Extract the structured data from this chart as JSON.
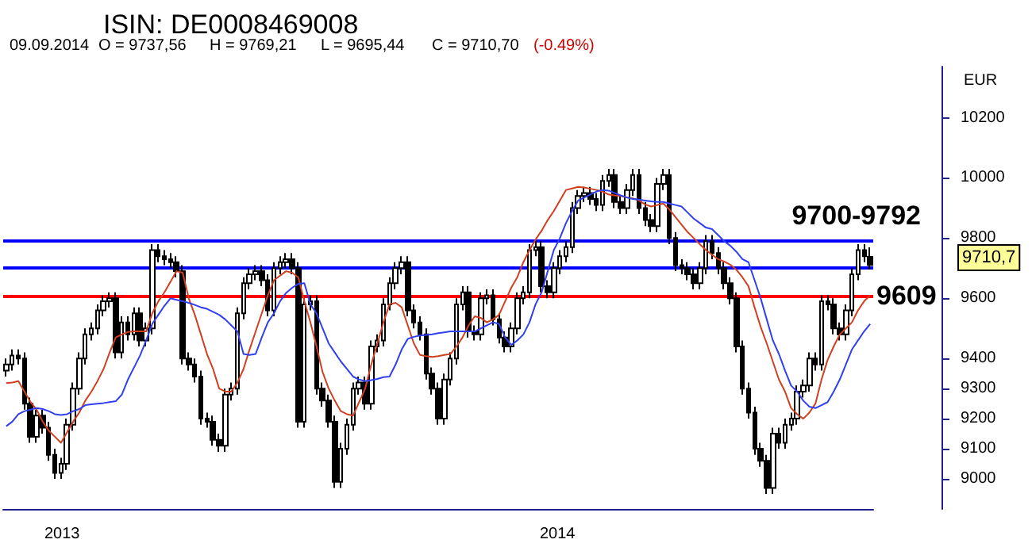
{
  "chart_data": {
    "type": "candlestick",
    "title": "ISIN: DE0008469008",
    "ylabel": "EUR",
    "tick_labels": "y",
    "line_style": "solid",
    "color": "#000000",
    "ylim": [
      8900,
      10370
    ],
    "yticks": [
      9000,
      9100,
      9200,
      9300,
      9400,
      9600,
      9800,
      10000,
      10200
    ],
    "categories": [
      null,
      null,
      null,
      null,
      null,
      null,
      null,
      null,
      null,
      null,
      null,
      null,
      null,
      null,
      null,
      null,
      null,
      null,
      null,
      null,
      null,
      null,
      null,
      null,
      null,
      null,
      null,
      null,
      null,
      null,
      null,
      null,
      null,
      null,
      null,
      null,
      null,
      null,
      null,
      null,
      null,
      null,
      null,
      null,
      null,
      null,
      null,
      null,
      null,
      null,
      null,
      null,
      null,
      null,
      null,
      null,
      null,
      null,
      null,
      null,
      null,
      null,
      null,
      null,
      null,
      null,
      null,
      null,
      null,
      null,
      null,
      null,
      null,
      null,
      null,
      null,
      null,
      null,
      null,
      null,
      null,
      null,
      null,
      null,
      null,
      null,
      null,
      null,
      null,
      null,
      null,
      null,
      null,
      null,
      null,
      null,
      null,
      null,
      null,
      null,
      null,
      null,
      null,
      null,
      null,
      null,
      null,
      null,
      null,
      null,
      null,
      null,
      null,
      null,
      null,
      null,
      null,
      null,
      null,
      null,
      null,
      null,
      null,
      null,
      null,
      null,
      null,
      null,
      null,
      null,
      null,
      null,
      null,
      null,
      null,
      null,
      null,
      null,
      null,
      null,
      null,
      null,
      null
    ],
    "ohlc": [
      [
        9360,
        9400,
        9340,
        9380
      ],
      [
        9380,
        9430,
        9360,
        9410
      ],
      [
        9410,
        9430,
        9380,
        9400
      ],
      [
        9400,
        9420,
        9230,
        9250
      ],
      [
        9250,
        9270,
        9120,
        9140
      ],
      [
        9140,
        9230,
        9120,
        9210
      ],
      [
        9210,
        9230,
        9150,
        9170
      ],
      [
        9170,
        9190,
        9060,
        9080
      ],
      [
        9080,
        9100,
        9000,
        9020
      ],
      [
        9020,
        9070,
        9000,
        9050
      ],
      [
        9050,
        9200,
        9030,
        9180
      ],
      [
        9180,
        9320,
        9160,
        9300
      ],
      [
        9300,
        9420,
        9280,
        9400
      ],
      [
        9400,
        9500,
        9380,
        9480
      ],
      [
        9480,
        9520,
        9460,
        9500
      ],
      [
        9500,
        9580,
        9480,
        9560
      ],
      [
        9560,
        9610,
        9540,
        9590
      ],
      [
        9590,
        9620,
        9570,
        9600
      ],
      [
        9600,
        9620,
        9400,
        9420
      ],
      [
        9420,
        9540,
        9400,
        9520
      ],
      [
        9520,
        9540,
        9460,
        9480
      ],
      [
        9480,
        9570,
        9460,
        9550
      ],
      [
        9550,
        9570,
        9440,
        9460
      ],
      [
        9460,
        9520,
        9440,
        9500
      ],
      [
        9500,
        9780,
        9480,
        9760
      ],
      [
        9760,
        9780,
        9720,
        9740
      ],
      [
        9740,
        9760,
        9710,
        9730
      ],
      [
        9730,
        9750,
        9700,
        9720
      ],
      [
        9720,
        9740,
        9670,
        9690
      ],
      [
        9690,
        9710,
        9380,
        9400
      ],
      [
        9400,
        9420,
        9360,
        9380
      ],
      [
        9380,
        9400,
        9320,
        9340
      ],
      [
        9340,
        9360,
        9180,
        9200
      ],
      [
        9200,
        9220,
        9170,
        9190
      ],
      [
        9190,
        9210,
        9110,
        9130
      ],
      [
        9130,
        9150,
        9090,
        9110
      ],
      [
        9110,
        9300,
        9090,
        9280
      ],
      [
        9280,
        9320,
        9260,
        9300
      ],
      [
        9300,
        9570,
        9280,
        9550
      ],
      [
        9550,
        9670,
        9530,
        9650
      ],
      [
        9650,
        9700,
        9630,
        9680
      ],
      [
        9680,
        9710,
        9660,
        9690
      ],
      [
        9690,
        9710,
        9640,
        9660
      ],
      [
        9660,
        9680,
        9540,
        9560
      ],
      [
        9560,
        9720,
        9540,
        9700
      ],
      [
        9700,
        9740,
        9680,
        9720
      ],
      [
        9720,
        9750,
        9700,
        9730
      ],
      [
        9730,
        9750,
        9680,
        9700
      ],
      [
        9700,
        9720,
        9170,
        9190
      ],
      [
        9190,
        9600,
        9170,
        9580
      ],
      [
        9580,
        9610,
        9560,
        9590
      ],
      [
        9590,
        9610,
        9280,
        9300
      ],
      [
        9300,
        9320,
        9240,
        9260
      ],
      [
        9260,
        9280,
        9170,
        9190
      ],
      [
        9190,
        9210,
        8970,
        8990
      ],
      [
        8990,
        9120,
        8970,
        9100
      ],
      [
        9100,
        9200,
        9080,
        9180
      ],
      [
        9180,
        9320,
        9160,
        9300
      ],
      [
        9300,
        9340,
        9280,
        9320
      ],
      [
        9320,
        9340,
        9230,
        9250
      ],
      [
        9250,
        9460,
        9230,
        9440
      ],
      [
        9440,
        9480,
        9420,
        9460
      ],
      [
        9460,
        9600,
        9440,
        9580
      ],
      [
        9580,
        9670,
        9560,
        9650
      ],
      [
        9650,
        9720,
        9630,
        9700
      ],
      [
        9700,
        9740,
        9680,
        9720
      ],
      [
        9720,
        9740,
        9540,
        9560
      ],
      [
        9560,
        9580,
        9500,
        9520
      ],
      [
        9520,
        9540,
        9460,
        9480
      ],
      [
        9480,
        9500,
        9330,
        9350
      ],
      [
        9350,
        9370,
        9280,
        9300
      ],
      [
        9300,
        9320,
        9180,
        9200
      ],
      [
        9200,
        9350,
        9180,
        9330
      ],
      [
        9330,
        9420,
        9310,
        9400
      ],
      [
        9400,
        9600,
        9380,
        9580
      ],
      [
        9580,
        9640,
        9560,
        9620
      ],
      [
        9620,
        9640,
        9470,
        9490
      ],
      [
        9490,
        9510,
        9460,
        9480
      ],
      [
        9480,
        9620,
        9460,
        9600
      ],
      [
        9600,
        9630,
        9580,
        9610
      ],
      [
        9610,
        9630,
        9510,
        9530
      ],
      [
        9530,
        9550,
        9450,
        9470
      ],
      [
        9470,
        9490,
        9420,
        9440
      ],
      [
        9440,
        9520,
        9420,
        9500
      ],
      [
        9500,
        9620,
        9480,
        9600
      ],
      [
        9600,
        9640,
        9580,
        9620
      ],
      [
        9620,
        9780,
        9600,
        9760
      ],
      [
        9760,
        9790,
        9740,
        9770
      ],
      [
        9770,
        9790,
        9620,
        9640
      ],
      [
        9640,
        9660,
        9600,
        9620
      ],
      [
        9620,
        9720,
        9600,
        9700
      ],
      [
        9700,
        9760,
        9680,
        9740
      ],
      [
        9740,
        9790,
        9720,
        9770
      ],
      [
        9770,
        9920,
        9750,
        9900
      ],
      [
        9900,
        9960,
        9880,
        9940
      ],
      [
        9940,
        9970,
        9920,
        9950
      ],
      [
        9950,
        9970,
        9910,
        9930
      ],
      [
        9930,
        9950,
        9890,
        9910
      ],
      [
        9910,
        10010,
        9890,
        9990
      ],
      [
        9990,
        10030,
        9970,
        10010
      ],
      [
        10010,
        10030,
        9900,
        9920
      ],
      [
        9920,
        9940,
        9880,
        9900
      ],
      [
        9900,
        9980,
        9880,
        9960
      ],
      [
        9960,
        10030,
        9940,
        10010
      ],
      [
        10010,
        10030,
        9880,
        9900
      ],
      [
        9900,
        9920,
        9840,
        9860
      ],
      [
        9860,
        9880,
        9820,
        9840
      ],
      [
        9840,
        10000,
        9820,
        9980
      ],
      [
        9980,
        10030,
        9960,
        10010
      ],
      [
        10010,
        10030,
        9780,
        9800
      ],
      [
        9800,
        9820,
        9690,
        9710
      ],
      [
        9710,
        9730,
        9680,
        9700
      ],
      [
        9700,
        9720,
        9660,
        9680
      ],
      [
        9680,
        9700,
        9630,
        9650
      ],
      [
        9650,
        9720,
        9630,
        9700
      ],
      [
        9700,
        9810,
        9680,
        9790
      ],
      [
        9790,
        9810,
        9730,
        9750
      ],
      [
        9750,
        9770,
        9680,
        9700
      ],
      [
        9700,
        9720,
        9630,
        9650
      ],
      [
        9650,
        9670,
        9580,
        9600
      ],
      [
        9600,
        9620,
        9420,
        9440
      ],
      [
        9440,
        9460,
        9280,
        9300
      ],
      [
        9300,
        9320,
        9200,
        9220
      ],
      [
        9220,
        9240,
        9080,
        9100
      ],
      [
        9100,
        9120,
        9040,
        9060
      ],
      [
        9060,
        9080,
        8950,
        8970
      ],
      [
        8970,
        9170,
        8950,
        9150
      ],
      [
        9150,
        9170,
        9100,
        9120
      ],
      [
        9120,
        9200,
        9100,
        9180
      ],
      [
        9180,
        9220,
        9160,
        9200
      ],
      [
        9200,
        9310,
        9180,
        9290
      ],
      [
        9290,
        9330,
        9270,
        9310
      ],
      [
        9310,
        9420,
        9290,
        9400
      ],
      [
        9400,
        9420,
        9360,
        9380
      ],
      [
        9380,
        9610,
        9360,
        9590
      ],
      [
        9590,
        9610,
        9560,
        9580
      ],
      [
        9580,
        9600,
        9480,
        9500
      ],
      [
        9500,
        9520,
        9460,
        9480
      ],
      [
        9480,
        9580,
        9460,
        9560
      ],
      [
        9560,
        9700,
        9540,
        9680
      ],
      [
        9680,
        9780,
        9660,
        9760
      ],
      [
        9760,
        9780,
        9720,
        9740
      ],
      [
        9737.56,
        9769.21,
        9695.44,
        9710.7
      ]
    ],
    "series": [
      {
        "type": "line",
        "color": "#d04020",
        "values": [
          9318,
          9320,
          9325,
          9290,
          9255,
          9230,
          9190,
          9160,
          9140,
          9120,
          9155,
          9190,
          9220,
          9260,
          9290,
          9325,
          9365,
          9420,
          9470,
          9480,
          9488,
          9490,
          9490,
          9490,
          9550,
          9590,
          9620,
          9655,
          9690,
          9685,
          9600,
          9545,
          9480,
          9415,
          9365,
          9300,
          9290,
          9290,
          9320,
          9365,
          9430,
          9490,
          9550,
          9610,
          9660,
          9675,
          9690,
          9685,
          9670,
          9590,
          9520,
          9440,
          9355,
          9300,
          9260,
          9225,
          9215,
          9210,
          9255,
          9300,
          9380,
          9450,
          9520,
          9580,
          9585,
          9570,
          9510,
          9450,
          9412,
          9408,
          9405,
          9408,
          9412,
          9415,
          9440,
          9470,
          9510,
          9540,
          9535,
          9520,
          9530,
          9545,
          9590,
          9635,
          9670,
          9720,
          9760,
          9795,
          9825,
          9860,
          9890,
          9925,
          9960,
          9965,
          9970,
          9968,
          9964,
          9960,
          9955,
          9945,
          9942,
          9940,
          9935,
          9932,
          9925,
          9912,
          9905,
          9910,
          9915,
          9895,
          9870,
          9845,
          9820,
          9800,
          9780,
          9760,
          9745,
          9730,
          9722,
          9712,
          9695,
          9670,
          9640,
          9570,
          9505,
          9450,
          9390,
          9330,
          9290,
          9235,
          9215,
          9200,
          9220,
          9250,
          9330,
          9395,
          9440,
          9480,
          9500,
          9520,
          9560,
          9590,
          9610
        ]
      },
      {
        "type": "line",
        "color": "#3040f0",
        "values": [
          9175,
          9190,
          9215,
          9225,
          9230,
          9235,
          9232,
          9225,
          9215,
          9212,
          9215,
          9225,
          9232,
          9245,
          9248,
          9250,
          9252,
          9255,
          9258,
          9280,
          9330,
          9370,
          9410,
          9460,
          9515,
          9545,
          9575,
          9600,
          9595,
          9590,
          9585,
          9578,
          9570,
          9565,
          9555,
          9545,
          9530,
          9510,
          9490,
          9415,
          9412,
          9415,
          9470,
          9520,
          9550,
          9590,
          9618,
          9635,
          9648,
          9650,
          9580,
          9550,
          9500,
          9450,
          9420,
          9390,
          9365,
          9340,
          9330,
          9325,
          9328,
          9332,
          9338,
          9340,
          9380,
          9430,
          9465,
          9472,
          9476,
          9478,
          9480,
          9484,
          9487,
          9490,
          9490,
          9490,
          9490,
          9490,
          9500,
          9510,
          9520,
          9515,
          9470,
          9445,
          9460,
          9480,
          9520,
          9580,
          9620,
          9690,
          9760,
          9800,
          9850,
          9890,
          9925,
          9935,
          9945,
          9955,
          9960,
          9958,
          9950,
          9942,
          9935,
          9930,
          9928,
          9925,
          9922,
          9920,
          9920,
          9915,
          9910,
          9905,
          9885,
          9865,
          9850,
          9835,
          9830,
          9810,
          9790,
          9775,
          9755,
          9730,
          9720,
          9660,
          9600,
          9530,
          9460,
          9415,
          9360,
          9310,
          9290,
          9260,
          9240,
          9235,
          9245,
          9255,
          9290,
          9330,
          9380,
          9430,
          9460,
          9490,
          9515
        ]
      }
    ],
    "ref_lines": [
      {
        "axis": "y",
        "value": 9792,
        "color": "#0000ff"
      },
      {
        "axis": "y",
        "value": 9700,
        "color": "#0000ff"
      },
      {
        "axis": "y",
        "value": 9609,
        "label": "9609",
        "color": "#ff0000"
      }
    ],
    "annotations": [
      "09.09.2014",
      "O = 9737,56",
      "H = 9769,21",
      "L = 9695,44",
      "C = 9710,70",
      "(-0.49%)",
      "2013",
      "2014",
      "9710,7",
      {
        "text": "9700-9792",
        "y": 9792
      }
    ]
  }
}
